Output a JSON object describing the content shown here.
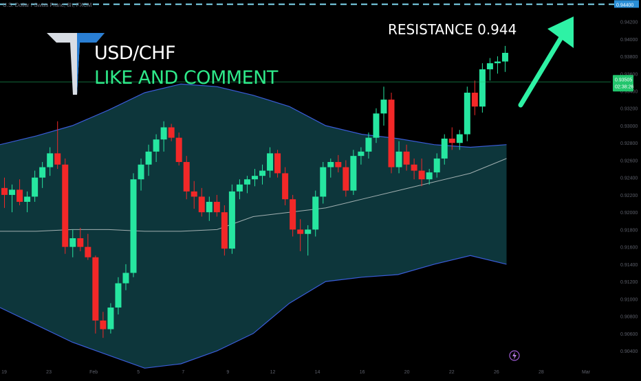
{
  "header": {
    "symbol_description": "U.S. Dollar / Swiss Franc, 8h, FXCM",
    "ticker": "USD/CHF",
    "call_to_action": "LIKE AND COMMENT"
  },
  "annotation": {
    "resistance_text": "RESISTANCE  0.944",
    "resistance_level": 0.944,
    "arrow_color": "#2ef2a5",
    "line_color": "#7fd8f0"
  },
  "price_badge": {
    "price": "0.93505",
    "countdown": "02:38:26",
    "color": "#22c66d"
  },
  "resistance_badge": {
    "price": "0.94400",
    "color": "#2a8fd8"
  },
  "colors": {
    "up": "#26e6a0",
    "down": "#f22828",
    "band_fill": "#0f3f45",
    "band_line": "#3a5cd8",
    "basis_line": "#c8d0d0",
    "axis_text": "#5d606b"
  },
  "icons": {
    "logo": "brand-t-logo-icon",
    "lightning": "lightning-icon"
  },
  "chart_data": {
    "type": "candlestick",
    "instrument": "USD/CHF",
    "timeframe": "8h",
    "y_range": [
      0.9025,
      0.9445
    ],
    "y_ticks": [
      "0.94400",
      "0.94200",
      "0.94000",
      "0.93800",
      "0.93600",
      "0.93400",
      "0.93200",
      "0.93000",
      "0.92800",
      "0.92600",
      "0.92400",
      "0.92200",
      "0.92000",
      "0.91800",
      "0.91600",
      "0.91400",
      "0.91200",
      "0.91000",
      "0.90800",
      "0.90600",
      "0.90400"
    ],
    "x_labels": [
      "19",
      "23",
      "Feb",
      "5",
      "7",
      "9",
      "12",
      "14",
      "16",
      "20",
      "22",
      "26",
      "28",
      "Mar"
    ],
    "candles": [
      {
        "o": 0.9228,
        "h": 0.924,
        "l": 0.9205,
        "c": 0.922
      },
      {
        "o": 0.922,
        "h": 0.9232,
        "l": 0.92,
        "c": 0.9226
      },
      {
        "o": 0.9226,
        "h": 0.9238,
        "l": 0.9208,
        "c": 0.9212
      },
      {
        "o": 0.9212,
        "h": 0.9224,
        "l": 0.92,
        "c": 0.9218
      },
      {
        "o": 0.9218,
        "h": 0.9248,
        "l": 0.9212,
        "c": 0.924
      },
      {
        "o": 0.924,
        "h": 0.9258,
        "l": 0.9228,
        "c": 0.9252
      },
      {
        "o": 0.9252,
        "h": 0.9275,
        "l": 0.9242,
        "c": 0.9268
      },
      {
        "o": 0.9268,
        "h": 0.9305,
        "l": 0.925,
        "c": 0.9255
      },
      {
        "o": 0.9255,
        "h": 0.9262,
        "l": 0.9152,
        "c": 0.916
      },
      {
        "o": 0.916,
        "h": 0.918,
        "l": 0.9148,
        "c": 0.917
      },
      {
        "o": 0.917,
        "h": 0.9182,
        "l": 0.9155,
        "c": 0.916
      },
      {
        "o": 0.916,
        "h": 0.9175,
        "l": 0.9145,
        "c": 0.9148
      },
      {
        "o": 0.9148,
        "h": 0.915,
        "l": 0.906,
        "c": 0.9075
      },
      {
        "o": 0.9075,
        "h": 0.9085,
        "l": 0.9055,
        "c": 0.9065
      },
      {
        "o": 0.9065,
        "h": 0.9095,
        "l": 0.906,
        "c": 0.909
      },
      {
        "o": 0.909,
        "h": 0.9125,
        "l": 0.9082,
        "c": 0.9118
      },
      {
        "o": 0.9118,
        "h": 0.914,
        "l": 0.911,
        "c": 0.913
      },
      {
        "o": 0.913,
        "h": 0.9245,
        "l": 0.9125,
        "c": 0.9238
      },
      {
        "o": 0.9238,
        "h": 0.9262,
        "l": 0.9225,
        "c": 0.9255
      },
      {
        "o": 0.9255,
        "h": 0.9278,
        "l": 0.9242,
        "c": 0.927
      },
      {
        "o": 0.927,
        "h": 0.929,
        "l": 0.9258,
        "c": 0.9284
      },
      {
        "o": 0.9284,
        "h": 0.9305,
        "l": 0.927,
        "c": 0.9298
      },
      {
        "o": 0.9298,
        "h": 0.9302,
        "l": 0.9282,
        "c": 0.9286
      },
      {
        "o": 0.9286,
        "h": 0.9292,
        "l": 0.9254,
        "c": 0.9258
      },
      {
        "o": 0.9258,
        "h": 0.9265,
        "l": 0.9215,
        "c": 0.9224
      },
      {
        "o": 0.9224,
        "h": 0.9236,
        "l": 0.9204,
        "c": 0.9218
      },
      {
        "o": 0.9218,
        "h": 0.9228,
        "l": 0.9195,
        "c": 0.92
      },
      {
        "o": 0.92,
        "h": 0.9218,
        "l": 0.919,
        "c": 0.9212
      },
      {
        "o": 0.9212,
        "h": 0.922,
        "l": 0.9195,
        "c": 0.92
      },
      {
        "o": 0.92,
        "h": 0.9208,
        "l": 0.915,
        "c": 0.9158
      },
      {
        "o": 0.9158,
        "h": 0.9232,
        "l": 0.9152,
        "c": 0.9224
      },
      {
        "o": 0.9224,
        "h": 0.9238,
        "l": 0.9215,
        "c": 0.9232
      },
      {
        "o": 0.9232,
        "h": 0.9242,
        "l": 0.9222,
        "c": 0.9238
      },
      {
        "o": 0.9238,
        "h": 0.925,
        "l": 0.923,
        "c": 0.9242
      },
      {
        "o": 0.9242,
        "h": 0.9255,
        "l": 0.9232,
        "c": 0.9248
      },
      {
        "o": 0.9248,
        "h": 0.9275,
        "l": 0.924,
        "c": 0.9268
      },
      {
        "o": 0.9268,
        "h": 0.9272,
        "l": 0.924,
        "c": 0.9245
      },
      {
        "o": 0.9245,
        "h": 0.9252,
        "l": 0.9208,
        "c": 0.9215
      },
      {
        "o": 0.9215,
        "h": 0.922,
        "l": 0.9172,
        "c": 0.918
      },
      {
        "o": 0.918,
        "h": 0.9192,
        "l": 0.9155,
        "c": 0.9175
      },
      {
        "o": 0.9175,
        "h": 0.9185,
        "l": 0.915,
        "c": 0.918
      },
      {
        "o": 0.918,
        "h": 0.9225,
        "l": 0.9172,
        "c": 0.9218
      },
      {
        "o": 0.9218,
        "h": 0.9258,
        "l": 0.921,
        "c": 0.9252
      },
      {
        "o": 0.9252,
        "h": 0.9262,
        "l": 0.924,
        "c": 0.9258
      },
      {
        "o": 0.9258,
        "h": 0.9266,
        "l": 0.9246,
        "c": 0.9252
      },
      {
        "o": 0.9252,
        "h": 0.926,
        "l": 0.9218,
        "c": 0.9225
      },
      {
        "o": 0.9225,
        "h": 0.9272,
        "l": 0.922,
        "c": 0.9265
      },
      {
        "o": 0.9265,
        "h": 0.9275,
        "l": 0.9255,
        "c": 0.927
      },
      {
        "o": 0.927,
        "h": 0.9292,
        "l": 0.9262,
        "c": 0.9286
      },
      {
        "o": 0.9286,
        "h": 0.932,
        "l": 0.928,
        "c": 0.9314
      },
      {
        "o": 0.9314,
        "h": 0.9345,
        "l": 0.93,
        "c": 0.933
      },
      {
        "o": 0.933,
        "h": 0.9338,
        "l": 0.9245,
        "c": 0.9252
      },
      {
        "o": 0.9252,
        "h": 0.9282,
        "l": 0.9245,
        "c": 0.927
      },
      {
        "o": 0.927,
        "h": 0.9278,
        "l": 0.9248,
        "c": 0.9255
      },
      {
        "o": 0.9255,
        "h": 0.9262,
        "l": 0.9238,
        "c": 0.9248
      },
      {
        "o": 0.9248,
        "h": 0.9262,
        "l": 0.923,
        "c": 0.9238
      },
      {
        "o": 0.9238,
        "h": 0.925,
        "l": 0.9232,
        "c": 0.9246
      },
      {
        "o": 0.9246,
        "h": 0.9268,
        "l": 0.924,
        "c": 0.9262
      },
      {
        "o": 0.9262,
        "h": 0.929,
        "l": 0.9255,
        "c": 0.9285
      },
      {
        "o": 0.9285,
        "h": 0.9298,
        "l": 0.9272,
        "c": 0.928
      },
      {
        "o": 0.928,
        "h": 0.9295,
        "l": 0.9272,
        "c": 0.929
      },
      {
        "o": 0.929,
        "h": 0.9345,
        "l": 0.9282,
        "c": 0.9338
      },
      {
        "o": 0.9338,
        "h": 0.9352,
        "l": 0.9312,
        "c": 0.9322
      },
      {
        "o": 0.9322,
        "h": 0.9372,
        "l": 0.9315,
        "c": 0.9365
      },
      {
        "o": 0.9365,
        "h": 0.9378,
        "l": 0.9352,
        "c": 0.9372
      },
      {
        "o": 0.9372,
        "h": 0.938,
        "l": 0.936,
        "c": 0.9374
      },
      {
        "o": 0.9374,
        "h": 0.9392,
        "l": 0.9362,
        "c": 0.9384
      }
    ],
    "bollinger": {
      "upper": [
        0.9278,
        0.9288,
        0.93,
        0.9318,
        0.9338,
        0.9348,
        0.9345,
        0.9335,
        0.9322,
        0.93,
        0.929,
        0.9285,
        0.9278,
        0.9275,
        0.9278
      ],
      "basis": [
        0.9178,
        0.9178,
        0.918,
        0.918,
        0.9178,
        0.9178,
        0.918,
        0.9195,
        0.92,
        0.9205,
        0.9215,
        0.9225,
        0.9235,
        0.9245,
        0.9262
      ],
      "lower": [
        0.909,
        0.907,
        0.905,
        0.9035,
        0.902,
        0.9025,
        0.904,
        0.906,
        0.9095,
        0.912,
        0.9125,
        0.9128,
        0.914,
        0.915,
        0.914
      ]
    },
    "last_price": 0.93505,
    "resistance": 0.944
  }
}
